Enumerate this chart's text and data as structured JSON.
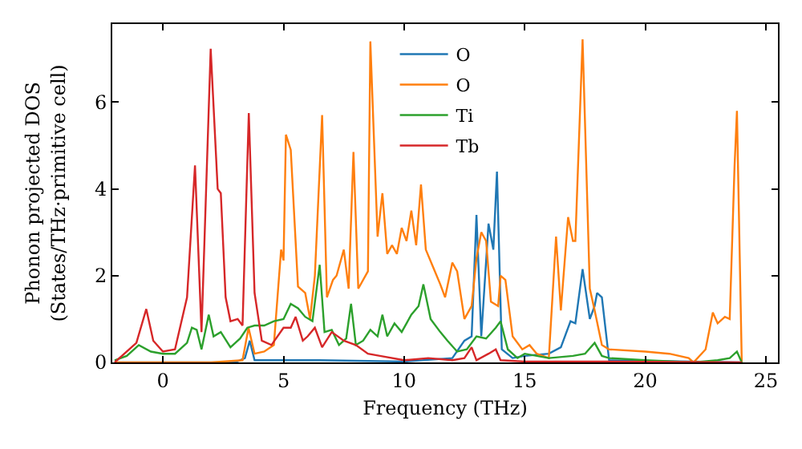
{
  "chart_data": {
    "type": "line",
    "xlabel": "Frequency (THz)",
    "ylabel": "Phonon projected DOS\n(States/THz·primitive cell)",
    "xlim": [
      -2.1,
      25.5
    ],
    "ylim": [
      0,
      7.8
    ],
    "xticks": [
      0,
      5,
      10,
      15,
      20,
      25
    ],
    "yticks": [
      0,
      2,
      4,
      6
    ],
    "legend": "top",
    "marker": "none",
    "line_style": "solid",
    "series": [
      {
        "name": "O",
        "color": "#1f77b4",
        "x": [
          -2,
          3,
          3.4,
          3.6,
          3.8,
          5,
          6.5,
          10,
          12,
          12.5,
          12.8,
          13.0,
          13.2,
          13.5,
          13.7,
          13.85,
          14.05,
          14.5,
          15,
          16,
          16.5,
          16.9,
          17.1,
          17.4,
          17.7,
          17.9,
          18.0,
          18.2,
          18.5,
          24
        ],
        "values": [
          0,
          0,
          0.1,
          0.5,
          0.05,
          0.05,
          0.05,
          0.02,
          0.1,
          0.5,
          0.6,
          3.4,
          0.6,
          3.2,
          2.6,
          4.4,
          0.3,
          0.1,
          0.15,
          0.2,
          0.35,
          0.95,
          0.9,
          2.15,
          1.0,
          1.3,
          1.6,
          1.5,
          0.05,
          0
        ]
      },
      {
        "name": "O",
        "color": "#ff7f0e",
        "x": [
          -2,
          2,
          3.3,
          3.55,
          3.8,
          4.2,
          4.6,
          4.9,
          5.0,
          5.1,
          5.3,
          5.6,
          5.9,
          6.1,
          6.3,
          6.6,
          6.8,
          7.05,
          7.2,
          7.5,
          7.7,
          7.9,
          8.1,
          8.5,
          8.6,
          8.9,
          9.1,
          9.3,
          9.5,
          9.7,
          9.9,
          10.1,
          10.3,
          10.5,
          10.7,
          10.9,
          11.2,
          11.5,
          11.7,
          12,
          12.2,
          12.5,
          12.8,
          13.0,
          13.2,
          13.4,
          13.6,
          13.9,
          14.0,
          14.2,
          14.5,
          14.9,
          15.2,
          15.5,
          16,
          16.3,
          16.5,
          16.8,
          17.0,
          17.1,
          17.4,
          17.7,
          17.9,
          18.2,
          18.5,
          20,
          21,
          21.8,
          22,
          22.5,
          22.8,
          23,
          23.3,
          23.5,
          23.7,
          23.8,
          24.0
        ],
        "values": [
          0,
          0,
          0.05,
          0.8,
          0.2,
          0.25,
          0.4,
          2.6,
          2.35,
          5.25,
          4.9,
          1.75,
          1.6,
          1.0,
          2.0,
          5.7,
          1.5,
          1.9,
          2.0,
          2.6,
          1.7,
          4.85,
          1.7,
          2.1,
          7.4,
          2.9,
          3.9,
          2.5,
          2.7,
          2.5,
          3.1,
          2.8,
          3.5,
          2.7,
          4.1,
          2.6,
          2.2,
          1.8,
          1.5,
          2.3,
          2.1,
          1.0,
          1.3,
          2.4,
          3.0,
          2.8,
          1.4,
          1.3,
          2.0,
          1.9,
          0.6,
          0.3,
          0.4,
          0.2,
          0.1,
          2.9,
          1.2,
          3.35,
          2.8,
          2.8,
          7.45,
          1.7,
          1.2,
          0.4,
          0.3,
          0.25,
          0.2,
          0.1,
          0.0,
          0.3,
          1.15,
          0.9,
          1.05,
          1.0,
          4.5,
          5.8,
          0.0
        ]
      },
      {
        "name": "Ti",
        "color": "#2ca02c",
        "x": [
          -2,
          -1.5,
          -1,
          -0.5,
          0,
          0.5,
          1,
          1.2,
          1.4,
          1.6,
          1.9,
          2.1,
          2.4,
          2.8,
          3.2,
          3.5,
          3.8,
          4.2,
          4.6,
          5.0,
          5.3,
          5.6,
          5.9,
          6.2,
          6.5,
          6.7,
          7.0,
          7.3,
          7.6,
          7.8,
          8.0,
          8.3,
          8.6,
          8.9,
          9.1,
          9.3,
          9.6,
          9.9,
          10.3,
          10.6,
          10.8,
          11.1,
          11.5,
          11.8,
          12.2,
          12.6,
          13.0,
          13.4,
          13.8,
          14.0,
          14.3,
          14.7,
          15,
          16,
          17,
          17.5,
          17.9,
          18.2,
          18.5,
          20,
          22,
          23,
          23.5,
          23.8,
          24.0
        ],
        "values": [
          0.05,
          0.15,
          0.4,
          0.25,
          0.2,
          0.2,
          0.45,
          0.8,
          0.75,
          0.3,
          1.1,
          0.6,
          0.7,
          0.35,
          0.55,
          0.8,
          0.85,
          0.85,
          0.95,
          1.0,
          1.35,
          1.25,
          1.05,
          0.95,
          2.25,
          0.7,
          0.75,
          0.4,
          0.55,
          1.35,
          0.4,
          0.5,
          0.75,
          0.6,
          1.1,
          0.6,
          0.9,
          0.7,
          1.1,
          1.3,
          1.8,
          1.0,
          0.7,
          0.5,
          0.25,
          0.3,
          0.6,
          0.55,
          0.8,
          0.95,
          0.3,
          0.1,
          0.2,
          0.1,
          0.15,
          0.2,
          0.45,
          0.15,
          0.1,
          0.05,
          0.0,
          0.05,
          0.1,
          0.25,
          0.0
        ]
      },
      {
        "name": "Tb",
        "color": "#d62728",
        "x": [
          -2,
          -1.1,
          -0.69,
          -0.4,
          0,
          0.5,
          1,
          1.33,
          1.6,
          1.98,
          2.27,
          2.4,
          2.6,
          2.8,
          3.1,
          3.3,
          3.56,
          3.8,
          4.1,
          4.5,
          5,
          5.3,
          5.5,
          5.8,
          6.0,
          6.3,
          6.6,
          7.0,
          7.5,
          8,
          8.5,
          9,
          10,
          11,
          12,
          12.5,
          12.8,
          13,
          13.5,
          13.8,
          14,
          15,
          18,
          24
        ],
        "values": [
          0,
          0.45,
          1.23,
          0.5,
          0.25,
          0.3,
          1.5,
          4.54,
          0.7,
          7.23,
          4.0,
          3.9,
          1.5,
          0.95,
          1.0,
          0.85,
          5.75,
          1.6,
          0.5,
          0.4,
          0.8,
          0.8,
          1.05,
          0.5,
          0.6,
          0.8,
          0.35,
          0.7,
          0.5,
          0.4,
          0.2,
          0.15,
          0.05,
          0.1,
          0.05,
          0.1,
          0.35,
          0.05,
          0.2,
          0.3,
          0.05,
          0.02,
          0.02,
          0
        ]
      }
    ]
  }
}
